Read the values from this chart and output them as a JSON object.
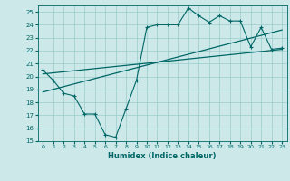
{
  "xlabel": "Humidex (Indice chaleur)",
  "ylabel": "",
  "background_color": "#cce8e8",
  "grid_color": "#99cccc",
  "line_color": "#006666",
  "xlim": [
    -0.5,
    23.5
  ],
  "ylim": [
    15,
    25.5
  ],
  "yticks": [
    15,
    16,
    17,
    18,
    19,
    20,
    21,
    22,
    23,
    24,
    25
  ],
  "xticks": [
    0,
    1,
    2,
    3,
    4,
    5,
    6,
    7,
    8,
    9,
    10,
    11,
    12,
    13,
    14,
    15,
    16,
    17,
    18,
    19,
    20,
    21,
    22,
    23
  ],
  "series1_x": [
    0,
    1,
    2,
    3,
    4,
    5,
    6,
    7,
    8,
    9,
    10,
    11,
    12,
    13,
    14,
    15,
    16,
    17,
    18,
    19,
    20,
    21,
    22,
    23
  ],
  "series1_y": [
    20.5,
    19.7,
    18.7,
    18.5,
    17.1,
    17.1,
    15.5,
    15.3,
    17.5,
    19.7,
    23.8,
    24.0,
    24.0,
    24.0,
    25.3,
    24.7,
    24.2,
    24.7,
    24.3,
    24.3,
    22.3,
    23.8,
    22.1,
    22.2
  ],
  "series2_x": [
    0,
    23
  ],
  "series2_y": [
    20.2,
    22.1
  ],
  "series3_x": [
    0,
    23
  ],
  "series3_y": [
    18.8,
    23.6
  ]
}
